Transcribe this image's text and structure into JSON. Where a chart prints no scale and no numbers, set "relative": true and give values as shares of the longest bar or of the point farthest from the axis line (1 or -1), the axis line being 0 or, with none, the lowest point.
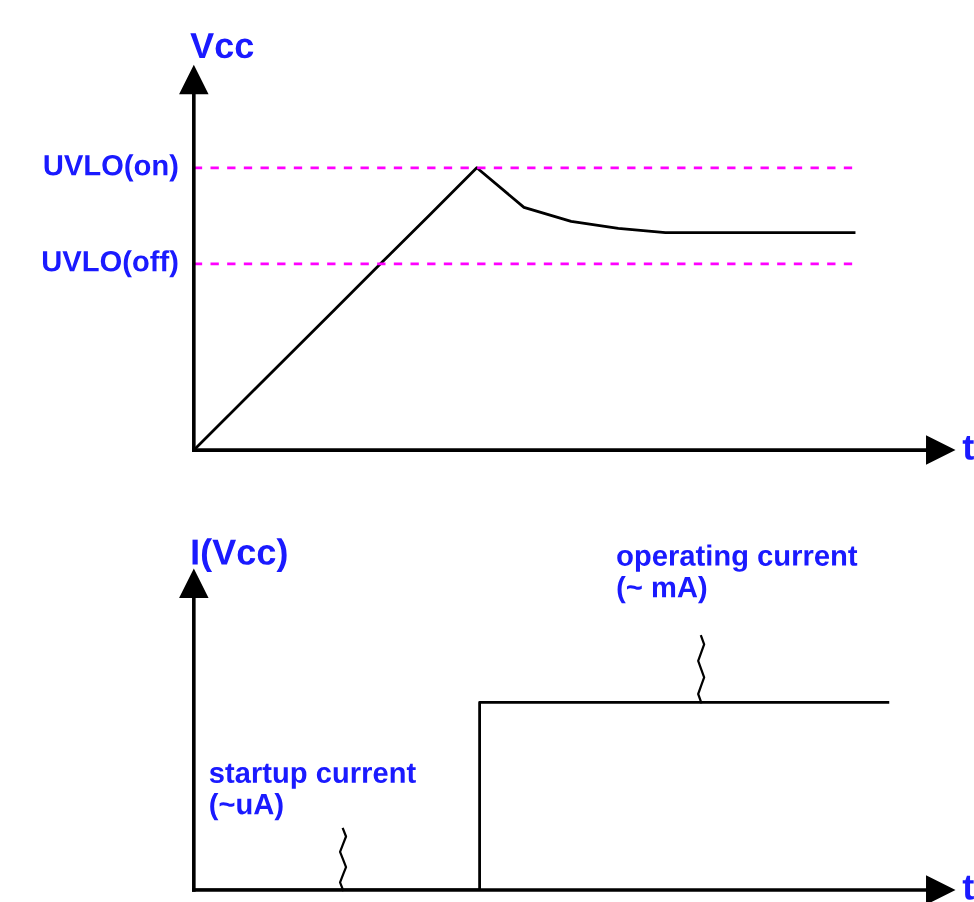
{
  "chart_data": [
    {
      "type": "line",
      "relative": true,
      "ylabel": "Vcc",
      "xlabel": "t",
      "categories": [
        null,
        null,
        null,
        null,
        null,
        null,
        null,
        null,
        null,
        null,
        null,
        null,
        null,
        null,
        null
      ],
      "series": [
        {
          "color": "#000000",
          "values": [
            0,
            0.167,
            0.333,
            0.5,
            0.667,
            0.833,
            1,
            0.86,
            0.81,
            0.785,
            0.77,
            0.77,
            0.77,
            0.77,
            0.77
          ]
        }
      ],
      "ref_lines": [
        {
          "axis": "y",
          "value": 1,
          "label": "UVLO(on)",
          "color": "#ff00ff",
          "line_style": "dashed"
        },
        {
          "axis": "y",
          "value": 0.66,
          "label": "UVLO(off)",
          "color": "#ff00ff",
          "line_style": "dashed"
        }
      ],
      "legend": false
    },
    {
      "type": "step",
      "relative": true,
      "ylabel": "I(Vcc)",
      "xlabel": "t",
      "categories": [
        null,
        null,
        null,
        null,
        null,
        null,
        null,
        null,
        null,
        null,
        null,
        null,
        null,
        null,
        null,
        null,
        null,
        null
      ],
      "series": [
        {
          "color": "#000000",
          "values": [
            0,
            0,
            0,
            0,
            0,
            0,
            0,
            1,
            1,
            1,
            1,
            1,
            1,
            1,
            1,
            1,
            1,
            1
          ]
        }
      ],
      "annotations": [
        "operating current\n(~ mA)",
        "startup current\n(~uA)"
      ],
      "legend": false
    }
  ]
}
